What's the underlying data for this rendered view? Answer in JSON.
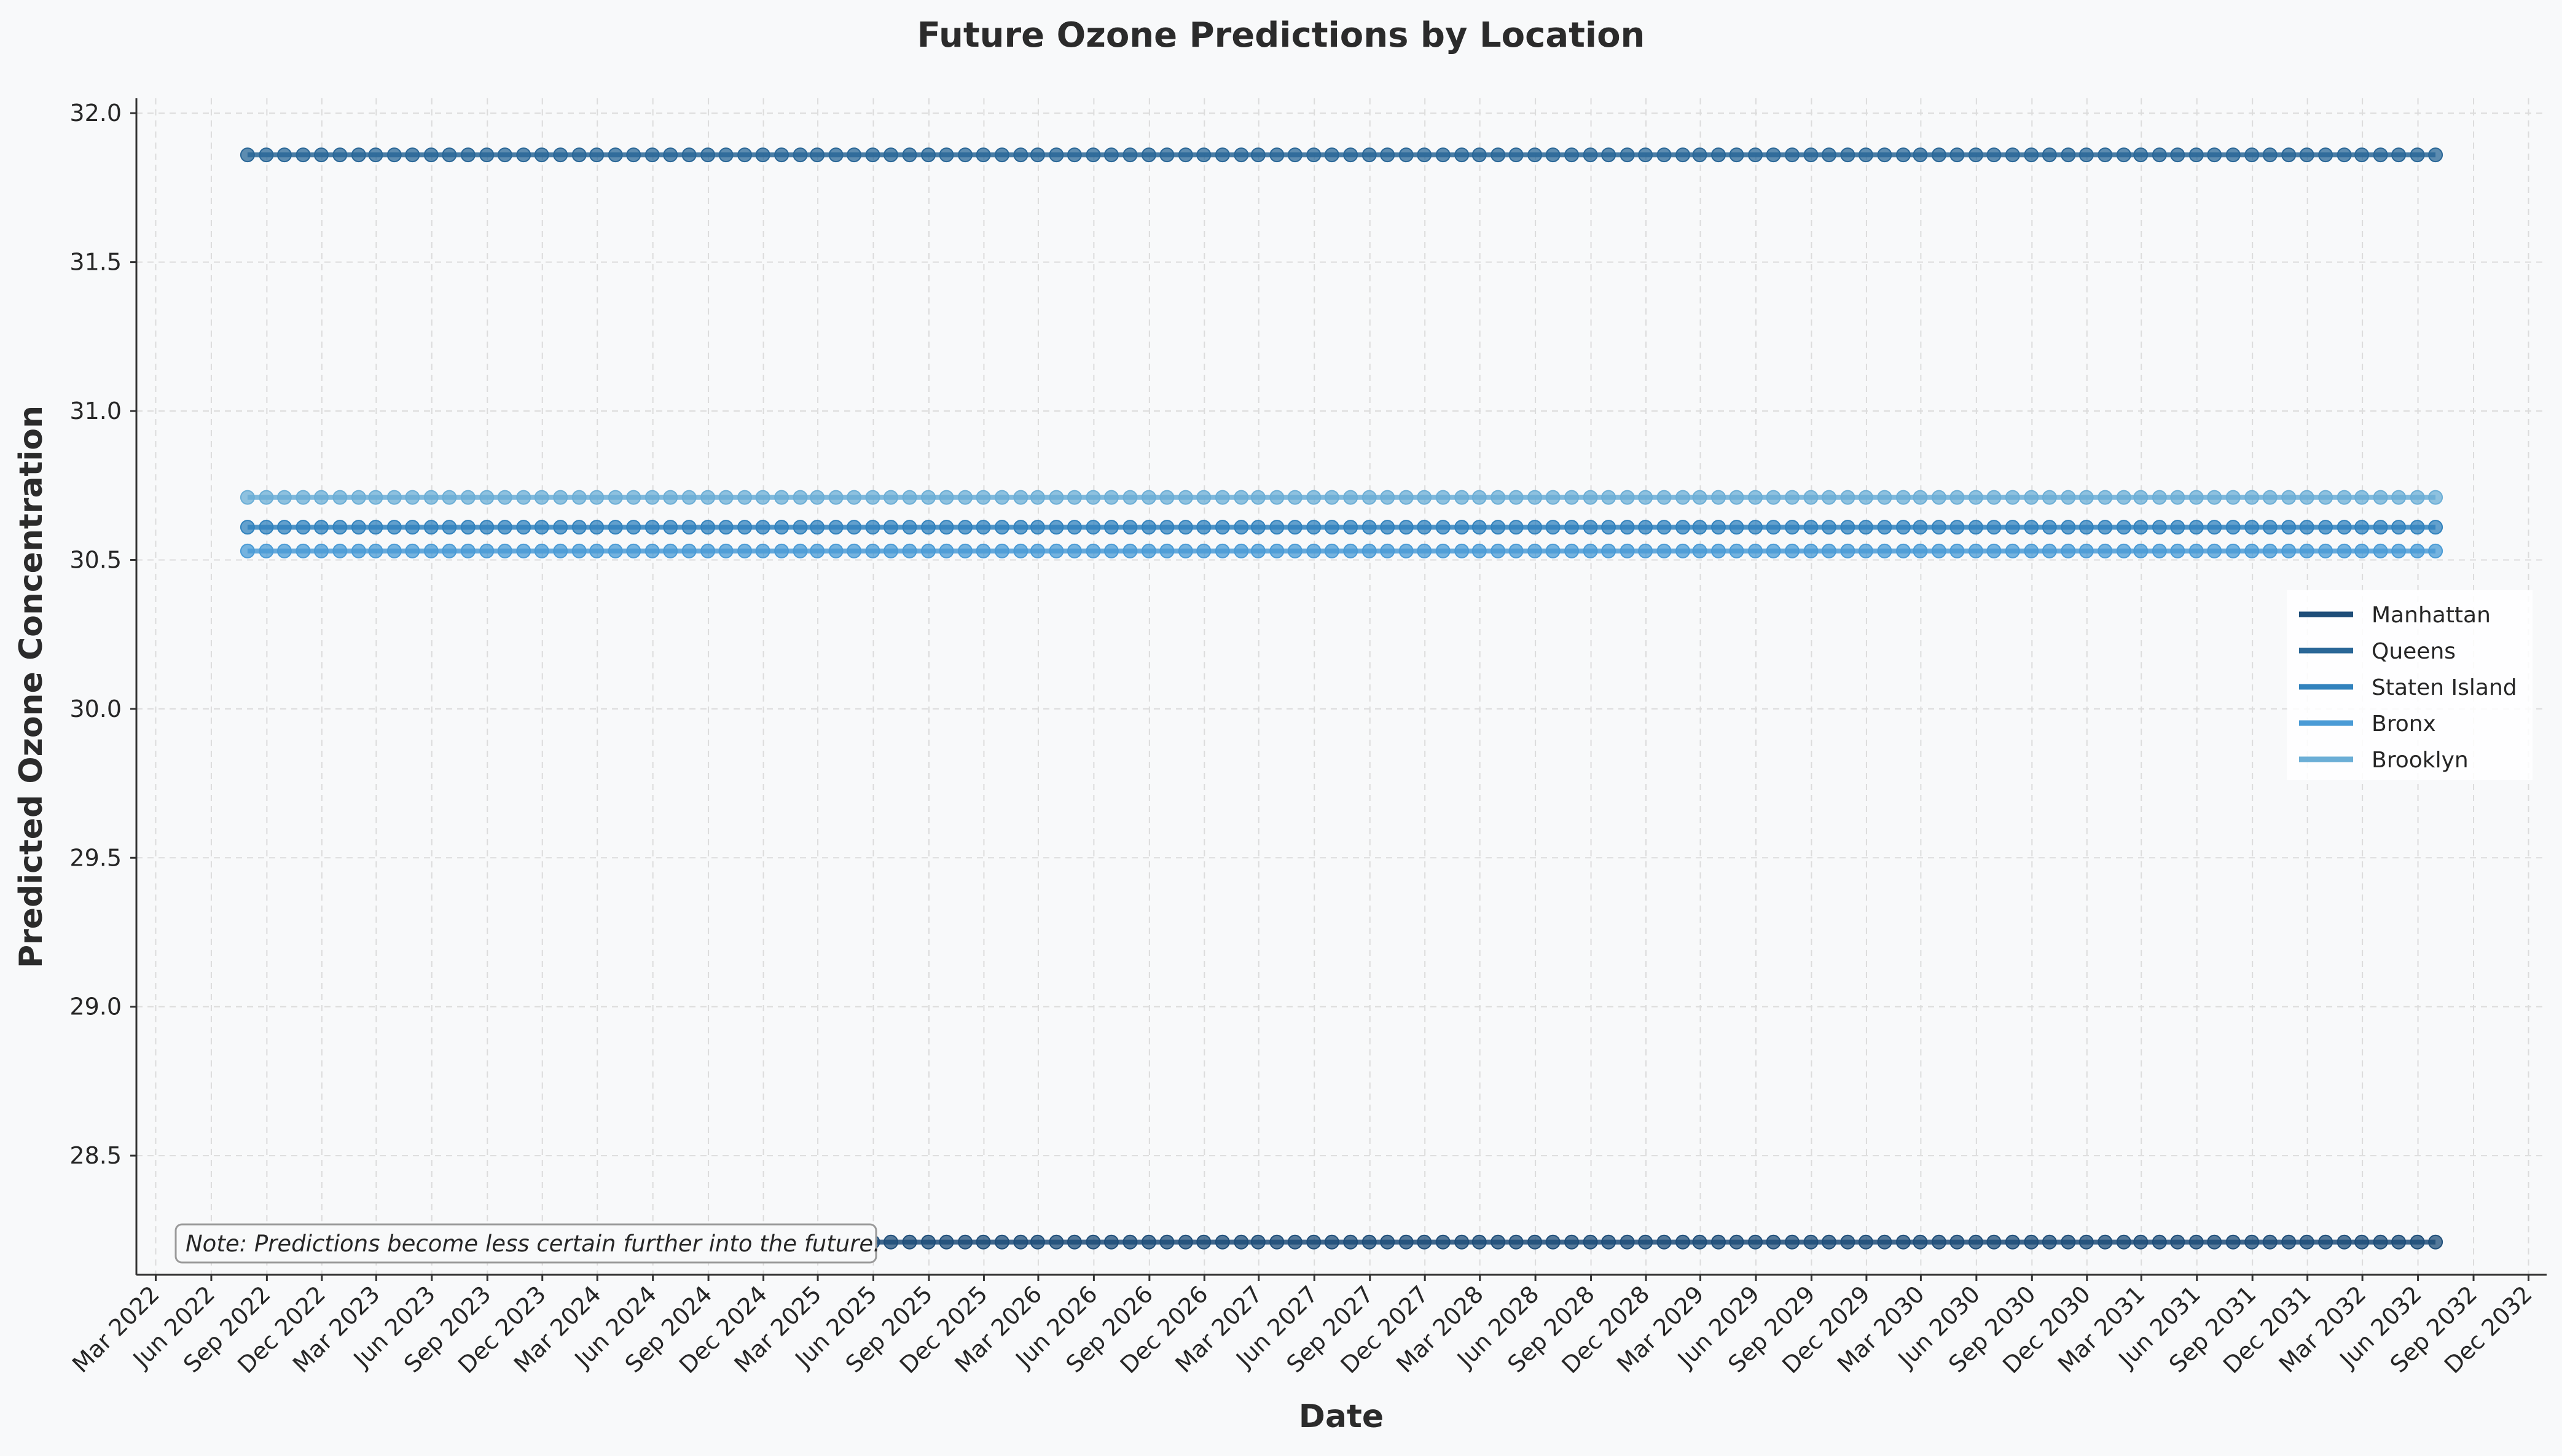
{
  "chart_data": {
    "type": "line",
    "title": "Future Ozone Predictions by Location",
    "xlabel": "Date",
    "ylabel": "Predicted Ozone Concentration",
    "ylim": [
      28.1,
      32.05
    ],
    "xlim": [
      "2022-01-28",
      "2032-12-31"
    ],
    "yticks": [
      28.5,
      29.0,
      29.5,
      30.0,
      30.5,
      31.0,
      31.5,
      32.0
    ],
    "ytick_labels": [
      "28.5",
      "29.0",
      "29.5",
      "30.0",
      "30.5",
      "31.0",
      "31.5",
      "32.0"
    ],
    "xticks": [
      "2022-03-01",
      "2022-06-01",
      "2022-09-01",
      "2022-12-01",
      "2023-03-01",
      "2023-06-01",
      "2023-09-01",
      "2023-12-01",
      "2024-03-01",
      "2024-06-01",
      "2024-09-01",
      "2024-12-01",
      "2025-03-01",
      "2025-06-01",
      "2025-09-01",
      "2025-12-01",
      "2026-03-01",
      "2026-06-01",
      "2026-09-01",
      "2026-12-01",
      "2027-03-01",
      "2027-06-01",
      "2027-09-01",
      "2027-12-01",
      "2028-03-01",
      "2028-06-01",
      "2028-09-01",
      "2028-12-01",
      "2029-03-01",
      "2029-06-01",
      "2029-09-01",
      "2029-12-01",
      "2030-03-01",
      "2030-06-01",
      "2030-09-01",
      "2030-12-01",
      "2031-03-01",
      "2031-06-01",
      "2031-09-01",
      "2031-12-01",
      "2032-03-01",
      "2032-06-01",
      "2032-09-01",
      "2032-12-01"
    ],
    "xtick_labels": [
      "Mar 2022",
      "Jun 2022",
      "Sep 2022",
      "Dec 2022",
      "Mar 2023",
      "Jun 2023",
      "Sep 2023",
      "Dec 2023",
      "Mar 2024",
      "Jun 2024",
      "Sep 2024",
      "Dec 2024",
      "Mar 2025",
      "Jun 2025",
      "Sep 2025",
      "Dec 2025",
      "Mar 2026",
      "Jun 2026",
      "Sep 2026",
      "Dec 2026",
      "Mar 2027",
      "Jun 2027",
      "Sep 2027",
      "Dec 2027",
      "Mar 2028",
      "Jun 2028",
      "Sep 2028",
      "Dec 2028",
      "Mar 2029",
      "Jun 2029",
      "Sep 2029",
      "Dec 2029",
      "Mar 2030",
      "Jun 2030",
      "Sep 2030",
      "Dec 2030",
      "Mar 2031",
      "Jun 2031",
      "Sep 2031",
      "Dec 2031",
      "Mar 2032",
      "Jun 2032",
      "Sep 2032",
      "Dec 2032"
    ],
    "x_start": "2022-07-31",
    "x_end": "2032-06-30",
    "x_frequency": "monthly (month end)",
    "grid": true,
    "legend_position": "center-right",
    "series": [
      {
        "name": "Manhattan",
        "value": 28.21,
        "color": "#1f4e79"
      },
      {
        "name": "Queens",
        "value": 31.86,
        "color": "#2a6797"
      },
      {
        "name": "Staten Island",
        "value": 30.61,
        "color": "#3182bd"
      },
      {
        "name": "Bronx",
        "value": 30.53,
        "color": "#4a9bd6"
      },
      {
        "name": "Brooklyn",
        "value": 30.71,
        "color": "#6baed6"
      }
    ],
    "annotation": "Note: Predictions become less certain further into the future."
  }
}
